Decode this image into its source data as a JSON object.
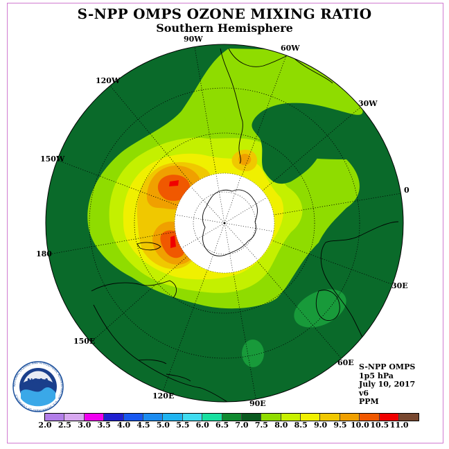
{
  "header": {
    "title": "S-NPP OMPS OZONE MIXING RATIO",
    "subtitle": "Southern Hemisphere"
  },
  "longitude_labels": [
    "90W",
    "60W",
    "30W",
    "0",
    "30E",
    "60E",
    "90E",
    "120E",
    "150E",
    "180",
    "150W",
    "120W"
  ],
  "info": {
    "instrument": "S-NPP OMPS",
    "pressure": "1p5 hPa",
    "date": "July 10, 2017",
    "version": "v6",
    "units": "PPM"
  },
  "logo": {
    "text": "NOAA",
    "ring_text": "NATIONAL OCEANIC AND ATMOSPHERIC ADMINISTRATION · U.S. DEPARTMENT OF COMMERCE"
  },
  "colorbar": {
    "ticks": [
      "2.0",
      "2.5",
      "3.0",
      "3.5",
      "4.0",
      "4.5",
      "5.0",
      "5.5",
      "6.0",
      "6.5",
      "7.0",
      "7.5",
      "8.0",
      "8.5",
      "9.0",
      "9.5",
      "10.0",
      "10.5",
      "11.0"
    ],
    "colors": [
      "#b27ee8",
      "#d8a8f0",
      "#f000f0",
      "#2020d0",
      "#1858f0",
      "#1c8cf0",
      "#20b4f0",
      "#40dcf0",
      "#18e0a0",
      "#108a30",
      "#0a5a20",
      "#90dc00",
      "#c8f000",
      "#f0f000",
      "#f0c800",
      "#f0a000",
      "#f05800",
      "#f00000",
      "#784830"
    ]
  }
}
